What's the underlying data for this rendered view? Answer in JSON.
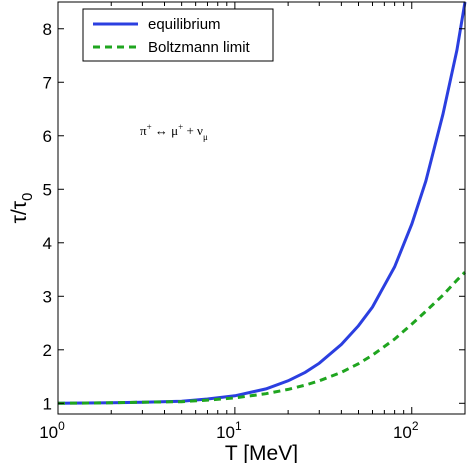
{
  "chart_data": {
    "type": "line",
    "title": "",
    "xlabel": "T [MeV]",
    "xscale": "log",
    "xlim": [
      1,
      200
    ],
    "ylim": [
      0.8,
      8.5
    ],
    "x_ticks": [
      {
        "value": 1,
        "base": "10",
        "exp": "0"
      },
      {
        "value": 10,
        "base": "10",
        "exp": "1"
      },
      {
        "value": 100,
        "base": "10",
        "exp": "2"
      }
    ],
    "y_ticks": [
      1,
      2,
      3,
      4,
      5,
      6,
      7,
      8
    ],
    "ylabel_parts": {
      "main": "τ/τ",
      "sub": "0"
    },
    "annotation": {
      "parts": [
        {
          "text": "π",
          "kind": "normal"
        },
        {
          "text": "+",
          "kind": "sup"
        },
        {
          "text": " ↔ μ",
          "kind": "normal"
        },
        {
          "text": "+",
          "kind": "sup"
        },
        {
          "text": " + ν",
          "kind": "normal"
        },
        {
          "text": "μ",
          "kind": "sub"
        }
      ]
    },
    "legend_position": "top-left",
    "grid": false,
    "series": [
      {
        "name": "equilibrium",
        "color": "#2b3fe0",
        "style": "solid",
        "x": [
          1,
          2,
          3,
          5,
          7,
          10,
          15,
          20,
          25,
          30,
          40,
          50,
          60,
          80,
          100,
          120,
          150,
          180,
          200
        ],
        "y": [
          1.0,
          1.01,
          1.02,
          1.04,
          1.08,
          1.14,
          1.27,
          1.42,
          1.58,
          1.75,
          2.1,
          2.45,
          2.8,
          3.55,
          4.35,
          5.15,
          6.4,
          7.6,
          8.5
        ]
      },
      {
        "name": "Boltzmann limit",
        "color": "#1fa51f",
        "style": "dashed",
        "x": [
          1,
          2,
          3,
          5,
          7,
          10,
          15,
          20,
          25,
          30,
          40,
          50,
          60,
          80,
          100,
          120,
          150,
          180,
          200
        ],
        "y": [
          1.0,
          1.01,
          1.02,
          1.03,
          1.06,
          1.1,
          1.18,
          1.26,
          1.34,
          1.42,
          1.58,
          1.74,
          1.9,
          2.2,
          2.48,
          2.72,
          3.02,
          3.3,
          3.45
        ]
      }
    ]
  }
}
